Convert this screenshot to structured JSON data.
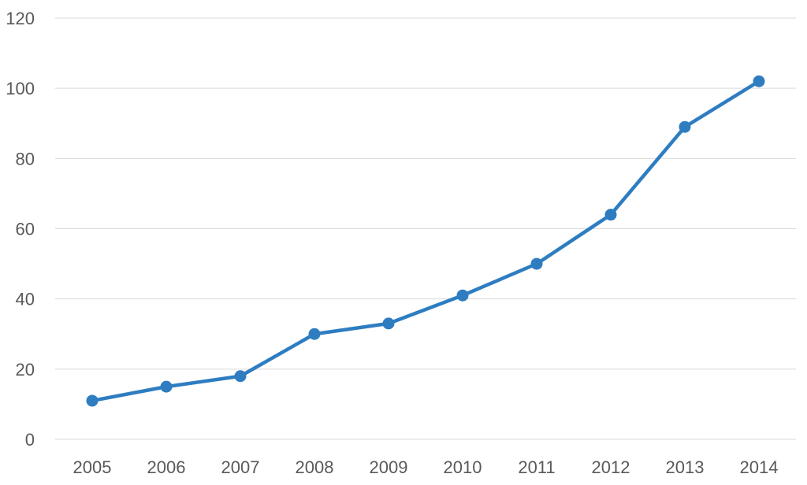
{
  "chart_data": {
    "type": "line",
    "title": "",
    "xlabel": "",
    "ylabel": "",
    "categories": [
      "2005",
      "2006",
      "2007",
      "2008",
      "2009",
      "2010",
      "2011",
      "2012",
      "2013",
      "2014"
    ],
    "series": [
      {
        "values": [
          11,
          15,
          18,
          30,
          33,
          41,
          50,
          64,
          89,
          102
        ],
        "color": "#2e7dc1",
        "markers": true
      }
    ],
    "ylim": [
      0,
      120
    ],
    "yticks": [
      "0",
      "20",
      "40",
      "60",
      "80",
      "100",
      "120"
    ],
    "grid": true,
    "legend": "none"
  }
}
